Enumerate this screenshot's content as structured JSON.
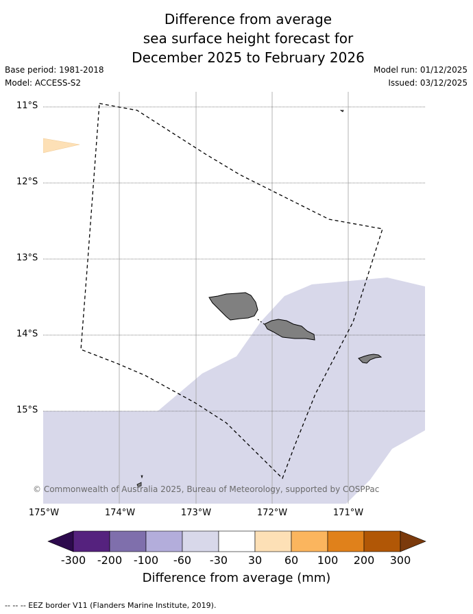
{
  "title": {
    "line1": "Difference from average",
    "line2": "sea surface height forecast for",
    "line3": "December 2025 to February 2026"
  },
  "meta": {
    "base_period": "Base period: 1981-2018",
    "model": "Model: ACCESS-S2",
    "model_run": "Model run: 01/12/2025",
    "issued": "Issued: 03/12/2025"
  },
  "map": {
    "latitude_labels": [
      "11°S",
      "12°S",
      "13°S",
      "14°S",
      "15°S"
    ],
    "longitude_labels": [
      "175°W",
      "174°W",
      "173°W",
      "172°W",
      "171°W"
    ],
    "copyright": "© Commonwealth of Australia 2025, Bureau of Meteorology, supported by COSPPac",
    "colors": {
      "anomaly_neg_small": "#d8d8ea",
      "anomaly_pos_small": "#fde0b6",
      "land": "#808080",
      "eez_border": "#000000"
    }
  },
  "colorbar": {
    "title": "Difference from average (mm)",
    "tick_labels": [
      "-300",
      "-200",
      "-100",
      "-60",
      "-30",
      "30",
      "60",
      "100",
      "200",
      "300"
    ],
    "colors": [
      "#2d0a4d",
      "#55227e",
      "#7f6fac",
      "#b3addb",
      "#d8d8ea",
      "#ffffff",
      "#fde0b6",
      "#fbb55e",
      "#e0811b",
      "#b15706",
      "#7b3a0c"
    ]
  },
  "footnote": "--  --  -- EEZ border V11 (Flanders Marine Institute, 2019)."
}
